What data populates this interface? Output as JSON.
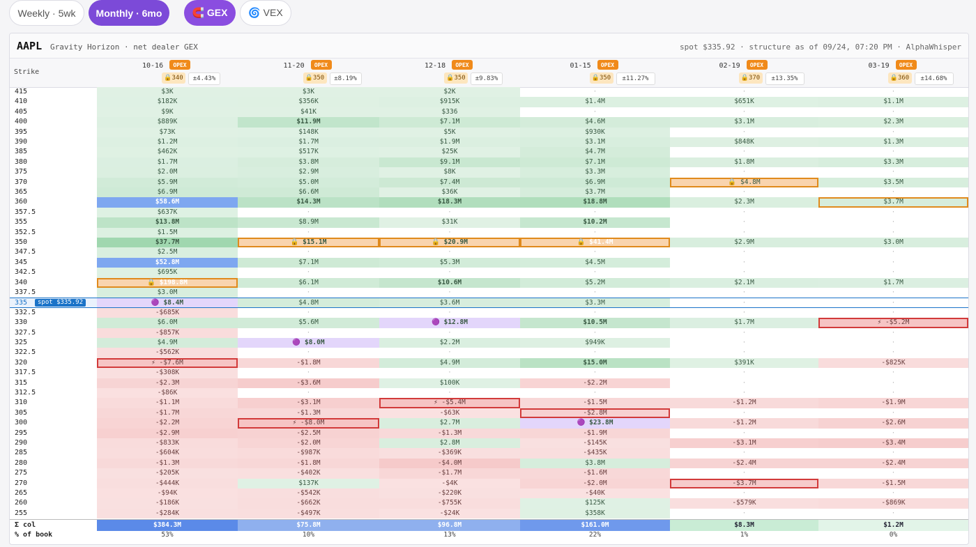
{
  "toolbar": {
    "weekly": "Weekly · 5wk",
    "monthly": "Monthly · 6mo",
    "gex": "🧲 GEX",
    "vex": "🌀 VEX"
  },
  "header": {
    "ticker": "AAPL",
    "subtitle": "Gravity Horizon · net dealer GEX",
    "meta": "spot $335.92 · structure as of 09/24, 07:20 PM · AlphaWhisper"
  },
  "strike_label": "Strike",
  "spot_tag": "spot $335.92",
  "opex_label": "OPEX",
  "columns": [
    {
      "date": "10-16",
      "wall": "🔒340",
      "move": "±4.43%"
    },
    {
      "date": "11-20",
      "wall": "🔒350",
      "move": "±8.19%"
    },
    {
      "date": "12-18",
      "wall": "🔒350",
      "move": "±9.83%"
    },
    {
      "date": "01-15",
      "wall": "🔒350",
      "move": "±11.27%"
    },
    {
      "date": "02-19",
      "wall": "🔒370",
      "move": "±13.35%"
    },
    {
      "date": "03-19",
      "wall": "🔒360",
      "move": "±14.68%"
    }
  ],
  "rows": [
    {
      "strike": "415",
      "cells": [
        "$3K",
        "$3K",
        "$2K",
        "·",
        "·",
        "·"
      ]
    },
    {
      "strike": "410",
      "cells": [
        "$182K",
        "$356K",
        "$915K",
        "$1.4M",
        "$651K",
        "$1.1M"
      ]
    },
    {
      "strike": "405",
      "cells": [
        "$9K",
        "$41K",
        "$336",
        "·",
        "·",
        "·"
      ]
    },
    {
      "strike": "400",
      "cells": [
        "$889K",
        "$11.9M",
        "$7.1M",
        "$4.6M",
        "$3.1M",
        "$2.3M"
      ]
    },
    {
      "strike": "395",
      "cells": [
        "$73K",
        "$148K",
        "$5K",
        "$930K",
        "·",
        "·"
      ]
    },
    {
      "strike": "390",
      "cells": [
        "$1.2M",
        "$1.7M",
        "$1.9M",
        "$3.1M",
        "$848K",
        "$1.3M"
      ]
    },
    {
      "strike": "385",
      "cells": [
        "$462K",
        "$517K",
        "$25K",
        "$4.7M",
        "·",
        "·"
      ]
    },
    {
      "strike": "380",
      "cells": [
        "$1.7M",
        "$3.8M",
        "$9.1M",
        "$7.1M",
        "$1.8M",
        "$3.3M"
      ]
    },
    {
      "strike": "375",
      "cells": [
        "$2.0M",
        "$2.9M",
        "$8K",
        "$3.3M",
        "·",
        "·"
      ]
    },
    {
      "strike": "370",
      "cells": [
        "$5.9M",
        "$5.0M",
        "$7.4M",
        "$6.9M",
        "🔒 $4.8M",
        "$3.5M"
      ]
    },
    {
      "strike": "365",
      "cells": [
        "$6.9M",
        "$6.6M",
        "$36K",
        "$3.7M",
        "·",
        "·"
      ]
    },
    {
      "strike": "360",
      "cells": [
        "$58.6M",
        "$14.3M",
        "$18.3M",
        "$18.8M",
        "$2.3M",
        "$3.7M"
      ]
    },
    {
      "strike": "357.5",
      "cells": [
        "$637K",
        "·",
        "·",
        "·",
        "·",
        "·"
      ]
    },
    {
      "strike": "355",
      "cells": [
        "$13.8M",
        "$8.9M",
        "$31K",
        "$10.2M",
        "·",
        "·"
      ]
    },
    {
      "strike": "352.5",
      "cells": [
        "$1.5M",
        "·",
        "·",
        "·",
        "·",
        "·"
      ]
    },
    {
      "strike": "350",
      "cells": [
        "$37.7M",
        "🔒 $15.1M",
        "🔒 $20.9M",
        "🔒 $41.4M",
        "$2.9M",
        "$3.0M"
      ]
    },
    {
      "strike": "347.5",
      "cells": [
        "$2.5M",
        "·",
        "·",
        "·",
        "·",
        "·"
      ]
    },
    {
      "strike": "345",
      "cells": [
        "$52.8M",
        "$7.1M",
        "$5.3M",
        "$4.5M",
        "·",
        "·"
      ]
    },
    {
      "strike": "342.5",
      "cells": [
        "$695K",
        "·",
        "·",
        "·",
        "·",
        "·"
      ]
    },
    {
      "strike": "340",
      "cells": [
        "🔒 $198.8M",
        "$6.1M",
        "$10.6M",
        "$5.2M",
        "$2.1M",
        "$1.7M"
      ]
    },
    {
      "strike": "337.5",
      "cells": [
        "$3.0M",
        "·",
        "·",
        "·",
        "·",
        "·"
      ]
    },
    {
      "strike": "335",
      "cells": [
        "🟣 $8.4M",
        "$4.8M",
        "$3.6M",
        "$3.3M",
        "·",
        "·"
      ]
    },
    {
      "strike": "332.5",
      "cells": [
        "-$685K",
        "·",
        "·",
        "·",
        "·",
        "·"
      ]
    },
    {
      "strike": "330",
      "cells": [
        "$6.0M",
        "$5.6M",
        "🟣 $12.8M",
        "$10.5M",
        "$1.7M",
        "⚡ -$5.2M"
      ]
    },
    {
      "strike": "327.5",
      "cells": [
        "-$857K",
        "·",
        "·",
        "·",
        "·",
        "·"
      ]
    },
    {
      "strike": "325",
      "cells": [
        "$4.9M",
        "🟣 $8.0M",
        "$2.2M",
        "$949K",
        "·",
        "·"
      ]
    },
    {
      "strike": "322.5",
      "cells": [
        "-$562K",
        "·",
        "·",
        "·",
        "·",
        "·"
      ]
    },
    {
      "strike": "320",
      "cells": [
        "⚡ -$7.6M",
        "-$1.8M",
        "$4.9M",
        "$15.0M",
        "$391K",
        "-$825K"
      ]
    },
    {
      "strike": "317.5",
      "cells": [
        "-$308K",
        "·",
        "·",
        "·",
        "·",
        "·"
      ]
    },
    {
      "strike": "315",
      "cells": [
        "-$2.3M",
        "-$3.6M",
        "$100K",
        "-$2.2M",
        "·",
        "·"
      ]
    },
    {
      "strike": "312.5",
      "cells": [
        "-$86K",
        "·",
        "·",
        "·",
        "·",
        "·"
      ]
    },
    {
      "strike": "310",
      "cells": [
        "-$1.1M",
        "-$3.1M",
        "⚡ -$5.4M",
        "-$1.5M",
        "-$1.2M",
        "-$1.9M"
      ]
    },
    {
      "strike": "305",
      "cells": [
        "-$1.7M",
        "-$1.3M",
        "-$63K",
        "-$2.8M",
        "·",
        "·"
      ]
    },
    {
      "strike": "300",
      "cells": [
        "-$2.2M",
        "⚡ -$8.0M",
        "$2.7M",
        "🟣 $23.8M",
        "-$1.2M",
        "-$2.6M"
      ]
    },
    {
      "strike": "295",
      "cells": [
        "-$2.9M",
        "-$2.5M",
        "-$1.3M",
        "-$1.9M",
        "·",
        "·"
      ]
    },
    {
      "strike": "290",
      "cells": [
        "-$833K",
        "-$2.0M",
        "$2.8M",
        "-$145K",
        "-$3.1M",
        "-$3.4M"
      ]
    },
    {
      "strike": "285",
      "cells": [
        "-$604K",
        "-$987K",
        "-$369K",
        "-$435K",
        "·",
        "·"
      ]
    },
    {
      "strike": "280",
      "cells": [
        "-$1.3M",
        "-$1.8M",
        "-$4.0M",
        "$3.8M",
        "-$2.4M",
        "-$2.4M"
      ]
    },
    {
      "strike": "275",
      "cells": [
        "-$205K",
        "-$402K",
        "-$1.7M",
        "-$1.6M",
        "·",
        "·"
      ]
    },
    {
      "strike": "270",
      "cells": [
        "-$444K",
        "$137K",
        "-$4K",
        "-$2.0M",
        "-$3.7M",
        "-$1.5M"
      ]
    },
    {
      "strike": "265",
      "cells": [
        "-$94K",
        "-$542K",
        "-$220K",
        "-$40K",
        "·",
        "·"
      ]
    },
    {
      "strike": "260",
      "cells": [
        "-$186K",
        "-$662K",
        "-$755K",
        "$125K",
        "-$579K",
        "-$869K"
      ]
    },
    {
      "strike": "255",
      "cells": [
        "-$284K",
        "-$497K",
        "-$24K",
        "$358K",
        "·",
        "·"
      ]
    }
  ],
  "sum_label": "Σ col",
  "sums": [
    "$384.3M",
    "$75.8M",
    "$96.8M",
    "$161.0M",
    "$8.3M",
    "$1.2M"
  ],
  "pct_label": "% of book",
  "pcts": [
    "53%",
    "10%",
    "13%",
    "22%",
    "1%",
    "0%"
  ],
  "colors": {
    "positive": "#cfead7",
    "negative": "#f8d6d6",
    "wall": "#f9d4ae",
    "wall_border": "#e08a1c",
    "neg_border": "#d23a3a",
    "spot": "#1a73c8",
    "magnet": "#e3d6fb",
    "big_positive": "#7ea7f0"
  }
}
